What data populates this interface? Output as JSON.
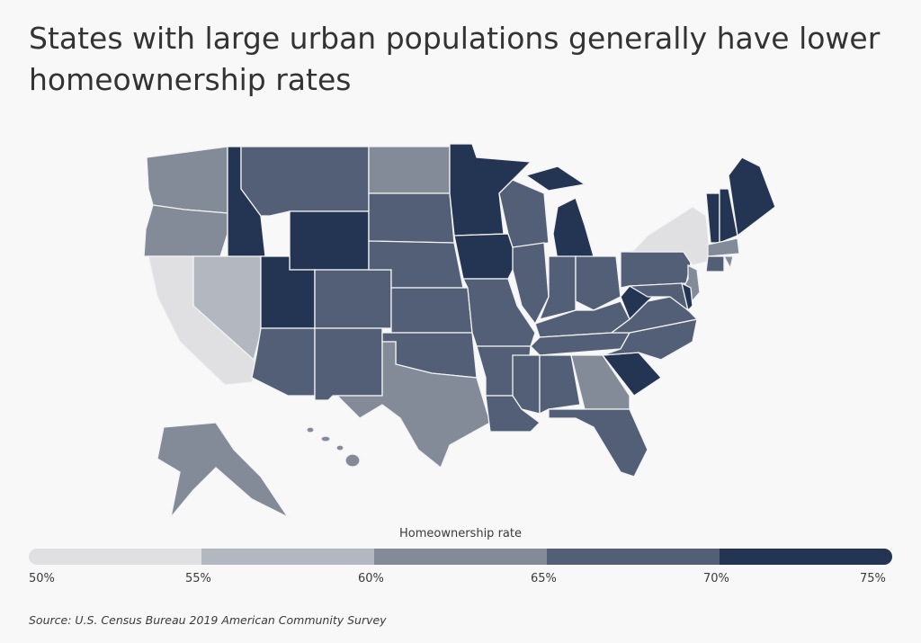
{
  "title": "States with large urban populations generally have lower homeownership rates",
  "legend": {
    "title": "Homeownership rate",
    "ticks": [
      "50%",
      "55%",
      "60%",
      "65%",
      "70%",
      "75%"
    ],
    "bins": [
      {
        "range": "50-55%",
        "color": "#e0e0e2"
      },
      {
        "range": "55-60%",
        "color": "#b3b7bf"
      },
      {
        "range": "60-65%",
        "color": "#838a98"
      },
      {
        "range": "65-70%",
        "color": "#525f77"
      },
      {
        "range": "70-75%",
        "color": "#243553"
      }
    ]
  },
  "chart_data": {
    "type": "choropleth",
    "metric": "Homeownership rate",
    "bin_edges_percent": [
      50,
      55,
      60,
      65,
      70,
      75
    ],
    "states": {
      "CA": 0,
      "NY": 0,
      "NV": 1,
      "WA": 2,
      "OR": 2,
      "ND": 2,
      "TX": 2,
      "GA": 2,
      "NJ": 2,
      "MA": 2,
      "RI": 2,
      "AK": 2,
      "HI": 2,
      "MT": 3,
      "SD": 3,
      "NE": 3,
      "CO": 3,
      "KS": 3,
      "OK": 3,
      "NM": 3,
      "AZ": 3,
      "WI": 3,
      "MO": 3,
      "AR": 3,
      "LA": 3,
      "IL": 3,
      "IN": 3,
      "OH": 3,
      "KY": 3,
      "TN": 3,
      "MS": 3,
      "AL": 3,
      "FL": 3,
      "NC": 3,
      "VA": 3,
      "PA": 3,
      "MD": 3,
      "CT": 3,
      "ID": 4,
      "WY": 4,
      "UT": 4,
      "MN": 4,
      "IA": 4,
      "MI": 4,
      "SC": 4,
      "WV": 4,
      "DE": 4,
      "VT": 4,
      "NH": 4,
      "ME": 4
    }
  },
  "source": "Source: U.S. Census Bureau 2019 American Community Survey"
}
